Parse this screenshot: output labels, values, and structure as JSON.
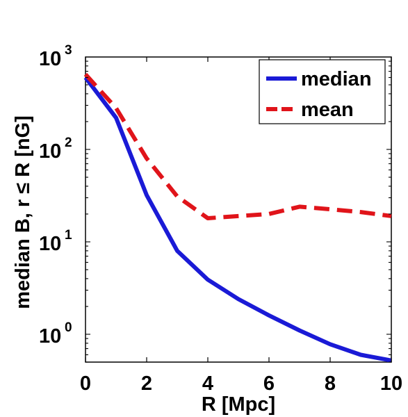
{
  "chart_data": {
    "type": "line",
    "xlabel": "R [Mpc]",
    "ylabel": "median B, r ≤ R [nG]",
    "xlim": [
      0,
      10
    ],
    "ylim": [
      0.5,
      1000
    ],
    "yscale": "log",
    "grid": false,
    "legend_position": "top-right",
    "x_ticks": [
      0,
      2,
      4,
      6,
      8,
      10
    ],
    "x_tick_labels": [
      "0",
      "2",
      "4",
      "6",
      "8",
      "10"
    ],
    "y_ticks": [
      1,
      10,
      100,
      1000
    ],
    "y_tick_labels": [
      {
        "base": "10",
        "exp": "0"
      },
      {
        "base": "10",
        "exp": "1"
      },
      {
        "base": "10",
        "exp": "2"
      },
      {
        "base": "10",
        "exp": "3"
      }
    ],
    "series": [
      {
        "name": "median",
        "color": "#1a1ad6",
        "style": "solid",
        "x": [
          0,
          1,
          2,
          3,
          4,
          5,
          6,
          7,
          8,
          9,
          10
        ],
        "y": [
          600,
          220,
          32,
          8,
          3.9,
          2.4,
          1.6,
          1.1,
          0.78,
          0.6,
          0.52
        ]
      },
      {
        "name": "mean",
        "color": "#e0141a",
        "style": "dashed",
        "x": [
          0,
          1,
          2,
          3,
          4,
          5,
          6,
          7,
          8,
          9,
          10
        ],
        "y": [
          650,
          280,
          80,
          31,
          18,
          19,
          20,
          24,
          22.5,
          21,
          19
        ]
      }
    ]
  }
}
